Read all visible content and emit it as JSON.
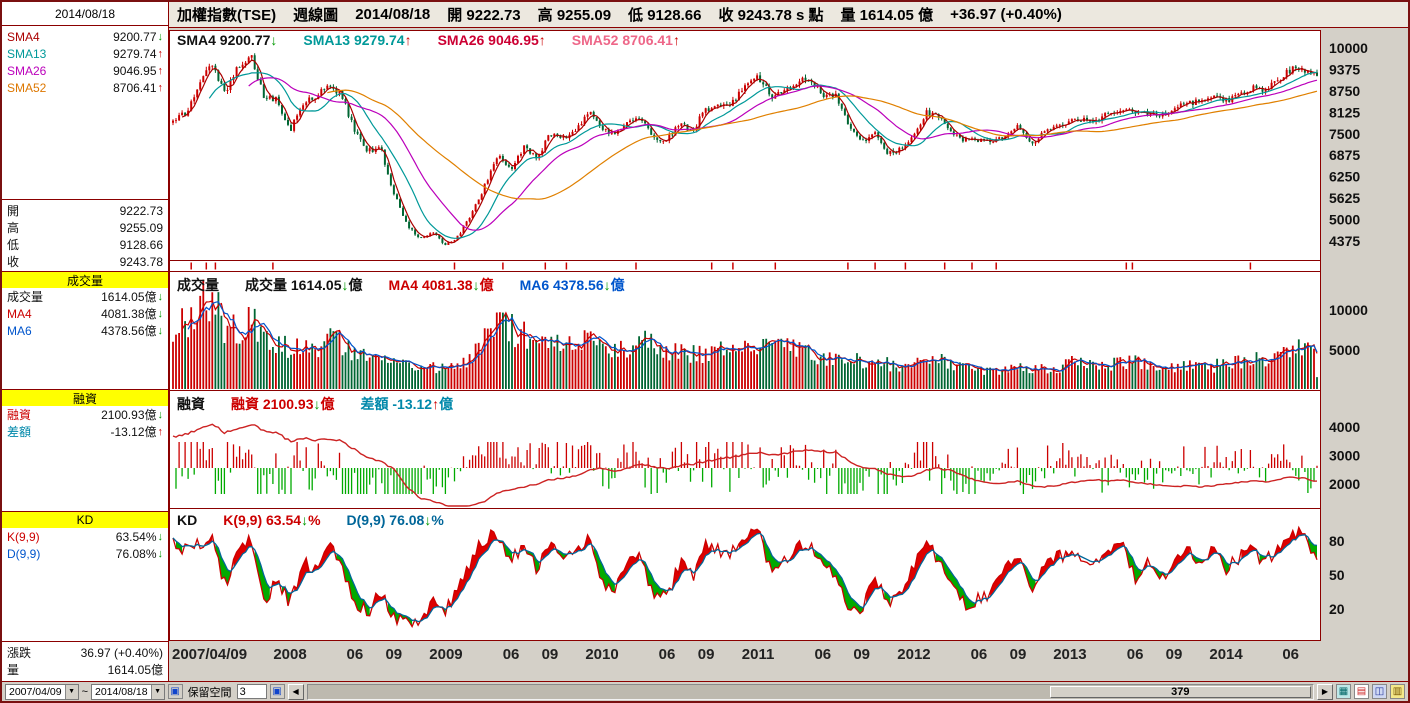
{
  "window": {
    "bg": "#d4d0c8",
    "frame_color": "#7a1010"
  },
  "topbar": {
    "symbol": "加權指數(TSE)",
    "period": "週線圖",
    "date": "2014/08/18",
    "open": "開 9222.73",
    "high": "高 9255.09",
    "low": "低 9128.66",
    "close": "收 9243.78 s 點",
    "volume": "量 1614.05 億",
    "change": "+36.97 (+0.40%)"
  },
  "sidebar": {
    "date": "2014/08/18",
    "sma_rows": [
      {
        "label": "SMA4",
        "value": "9200.77",
        "arrow": "↓",
        "arrow_color": "#009900",
        "color": "#aa0000"
      },
      {
        "label": "SMA13",
        "value": "9279.74",
        "arrow": "↑",
        "arrow_color": "#cc0000",
        "color": "#009999"
      },
      {
        "label": "SMA26",
        "value": "9046.95",
        "arrow": "↑",
        "arrow_color": "#cc0000",
        "color": "#bb00bb"
      },
      {
        "label": "SMA52",
        "value": "8706.41",
        "arrow": "↑",
        "arrow_color": "#cc0000",
        "color": "#dd7700"
      }
    ],
    "ohlc_rows": [
      {
        "label": "開",
        "value": "9222.73"
      },
      {
        "label": "高",
        "value": "9255.09"
      },
      {
        "label": "低",
        "value": "9128.66"
      },
      {
        "label": "收",
        "value": "9243.78"
      }
    ],
    "volume_section": {
      "header": "成交量",
      "rows": [
        {
          "label": "成交量",
          "value": "1614.05億",
          "arrow": "↓",
          "arrow_color": "#009900",
          "color": "#111111"
        },
        {
          "label": "MA4",
          "value": "4081.38億",
          "arrow": "↓",
          "arrow_color": "#009900",
          "color": "#cc0000"
        },
        {
          "label": "MA6",
          "value": "4378.56億",
          "arrow": "↓",
          "arrow_color": "#009900",
          "color": "#0055cc"
        }
      ]
    },
    "margin_section": {
      "header": "融資",
      "rows": [
        {
          "label": "融資",
          "value": "2100.93億",
          "arrow": "↓",
          "arrow_color": "#009900",
          "color": "#cc0000"
        },
        {
          "label": "差額",
          "value": "-13.12億",
          "arrow": "↑",
          "arrow_color": "#cc0000",
          "color": "#0088aa"
        }
      ]
    },
    "kd_section": {
      "header": "KD",
      "rows": [
        {
          "label": "K(9,9)",
          "value": "63.54%",
          "arrow": "↓",
          "arrow_color": "#009900",
          "color": "#cc0000"
        },
        {
          "label": "D(9,9)",
          "value": "76.08%",
          "arrow": "↓",
          "arrow_color": "#009900",
          "color": "#0055cc"
        }
      ]
    },
    "footer_rows": [
      {
        "label": "漲跌",
        "value": "36.97 (+0.40%)"
      },
      {
        "label": "量",
        "value": "1614.05億"
      }
    ]
  },
  "bottombar": {
    "from_date": "2007/04/09",
    "tilde": "~",
    "to_date": "2014/08/18",
    "reserve_label": "保留空間",
    "reserve_value": "3",
    "bar_count": "379"
  },
  "chart_data": [
    {
      "id": "price",
      "type": "candlestick",
      "title": "加權指數(TSE) 週線圖",
      "weeks": 379,
      "up_color": "#cc0000",
      "down_color": "#006633",
      "y_ticks": [
        10000,
        9375,
        8750,
        8125,
        7500,
        6875,
        6250,
        5625,
        5000,
        4375
      ],
      "ylim": [
        4330,
        10520
      ],
      "anchor_months": {
        "start": "2007/04",
        "end": "2014/08"
      },
      "x_axis": {
        "labels": [
          "2007/04/09",
          "2008",
          "06",
          "09",
          "2009",
          "06",
          "09",
          "2010",
          "06",
          "09",
          "2011",
          "06",
          "09",
          "2012",
          "06",
          "09",
          "2013",
          "06",
          "09",
          "2014",
          "06"
        ],
        "fracs": [
          0,
          0.1023,
          0.159,
          0.193,
          0.2386,
          0.2955,
          0.3295,
          0.375,
          0.4318,
          0.466,
          0.5114,
          0.568,
          0.602,
          0.6477,
          0.7045,
          0.7386,
          0.784,
          0.841,
          0.875,
          0.9205,
          0.977
        ]
      },
      "monthly_close_anchors": [
        7900,
        8100,
        8900,
        9550,
        8650,
        9450,
        9750,
        8600,
        8500,
        7600,
        8400,
        8600,
        8950,
        8600,
        7550,
        7000,
        7050,
        5750,
        4850,
        4450,
        4600,
        4250,
        4550,
        5200,
        6000,
        6900,
        6450,
        7100,
        6800,
        7500,
        7350,
        7600,
        8190,
        7640,
        7440,
        7920,
        8000,
        7370,
        7330,
        7760,
        7620,
        8240,
        8290,
        8370,
        8970,
        9150,
        8600,
        8680,
        9010,
        9070,
        8650,
        8640,
        7740,
        7230,
        7590,
        6900,
        7070,
        7520,
        8120,
        7930,
        7500,
        7300,
        7300,
        7270,
        7400,
        7715,
        7170,
        7580,
        7700,
        7850,
        7900,
        7920,
        8090,
        8250,
        8060,
        8110,
        8020,
        8170,
        8450,
        8410,
        8610,
        8460,
        8640,
        8850,
        8790,
        9075,
        9390,
        9315,
        9243
      ],
      "overlays": [
        {
          "name": "SMA4",
          "period": 4,
          "value": 9200.77,
          "color": "#aa0000"
        },
        {
          "name": "SMA13",
          "period": 13,
          "value": 9279.74,
          "color": "#009999"
        },
        {
          "name": "SMA26",
          "period": 26,
          "value": 9046.95,
          "color": "#bb00bb"
        },
        {
          "name": "SMA52",
          "period": 52,
          "value": 8706.41,
          "color": "#e08000"
        }
      ],
      "header": [
        {
          "text": "SMA4 9200.77",
          "arrow": "↓",
          "arrow_color": "#009900",
          "color": "#111111"
        },
        {
          "text": "SMA13 9279.74",
          "arrow": "↑",
          "arrow_color": "#cc0000",
          "color": "#009999"
        },
        {
          "text": "SMA26 9046.95",
          "arrow": "↑",
          "arrow_color": "#cc0000",
          "color": "#cc0033"
        },
        {
          "text": "SMA52 8706.41",
          "arrow": "↑",
          "arrow_color": "#cc0000",
          "color": "#ee6688"
        }
      ]
    },
    {
      "id": "volume",
      "type": "bar",
      "label": "成交量",
      "unit": "億",
      "value": 1614.05,
      "last_bar": 1614.05,
      "y_ticks": [
        10000,
        5000
      ],
      "monthly_anchors": [
        7500,
        8500,
        10500,
        11500,
        8000,
        7500,
        9000,
        7000,
        6000,
        5000,
        5500,
        5200,
        6200,
        6000,
        4800,
        4200,
        3500,
        3200,
        3400,
        3000,
        2800,
        2600,
        3000,
        4200,
        6500,
        9000,
        7500,
        6800,
        6200,
        6000,
        5200,
        5500,
        6000,
        5800,
        4800,
        5400,
        6000,
        5600,
        4600,
        4800,
        4400,
        4600,
        5000,
        5400,
        5600,
        6200,
        5400,
        5000,
        5200,
        4800,
        4000,
        3800,
        4600,
        3600,
        3800,
        3200,
        2800,
        3200,
        4200,
        3800,
        3000,
        2600,
        2400,
        2200,
        2600,
        3000,
        2400,
        2600,
        2800,
        3400,
        3200,
        3000,
        3200,
        3600,
        3400,
        3000,
        2800,
        2900,
        3300,
        3100,
        3000,
        3200,
        3400,
        3800,
        3600,
        4200,
        5000,
        5200,
        4200
      ],
      "ma": [
        {
          "name": "MA4",
          "period": 4,
          "value": 4081.38,
          "color": "#cc0000"
        },
        {
          "name": "MA6",
          "period": 6,
          "value": 4378.56,
          "color": "#0055cc"
        }
      ],
      "header": [
        {
          "text": "成交量",
          "color": "#111111"
        },
        {
          "text": "成交量 1614.05",
          "arrow": "↓",
          "arrow_color": "#009900",
          "tail": "億",
          "color": "#111111"
        },
        {
          "text": "MA4 4081.38",
          "arrow": "↓",
          "arrow_color": "#009900",
          "tail": "億",
          "color": "#cc0000"
        },
        {
          "text": "MA6 4378.56",
          "arrow": "↓",
          "arrow_color": "#009900",
          "tail": "億",
          "color": "#0055cc"
        }
      ]
    },
    {
      "id": "margin",
      "type": "line",
      "label": "融資",
      "unit": "億",
      "value": 2100.93,
      "diff_label": "差額",
      "diff_value": -13.12,
      "line_color": "#cc2222",
      "diff_up_color": "#cc0000",
      "diff_down_color": "#00aa00",
      "y_ticks": [
        4000,
        3000,
        2000
      ],
      "monthly_anchors": [
        3650,
        3750,
        3900,
        4100,
        3800,
        3900,
        4100,
        3900,
        3800,
        3500,
        3600,
        3550,
        3600,
        3500,
        3200,
        2900,
        2800,
        2500,
        1900,
        1500,
        1400,
        1250,
        1200,
        1250,
        1400,
        1700,
        1800,
        1900,
        2000,
        2150,
        2200,
        2300,
        2500,
        2550,
        2450,
        2550,
        2700,
        2600,
        2550,
        2650,
        2700,
        2800,
        2900,
        2950,
        3050,
        3100,
        3000,
        3050,
        3150,
        3200,
        3150,
        3100,
        2800,
        2600,
        2550,
        2350,
        2250,
        2300,
        2500,
        2550,
        2450,
        2250,
        2100,
        2000,
        2050,
        2100,
        1950,
        1900,
        1950,
        2050,
        2100,
        2150,
        2100,
        2150,
        2050,
        2000,
        1950,
        1900,
        1950,
        1900,
        1950,
        2000,
        2050,
        2100,
        2080,
        2150,
        2250,
        2200,
        2100
      ],
      "header": [
        {
          "text": "融資",
          "color": "#111111"
        },
        {
          "text": "融資 2100.93",
          "arrow": "↓",
          "arrow_color": "#009900",
          "tail": "億",
          "color": "#cc0000"
        },
        {
          "text": "差額 -13.12",
          "arrow": "↑",
          "arrow_color": "#cc0000",
          "tail": "億",
          "color": "#0088aa"
        }
      ]
    },
    {
      "id": "kd",
      "type": "line",
      "label": "KD",
      "k": {
        "name": "K(9,9)",
        "value": 63.54,
        "color": "#cc0000"
      },
      "d": {
        "name": "D(9,9)",
        "value": 76.08,
        "color": "#006699"
      },
      "fill_up_color": "#dd0000",
      "fill_down_color": "#00aa00",
      "y_ticks": [
        80,
        50,
        20
      ],
      "k_anchors": [
        82,
        70,
        78,
        85,
        40,
        72,
        80,
        25,
        45,
        25,
        60,
        55,
        75,
        60,
        25,
        18,
        35,
        12,
        10,
        12,
        25,
        20,
        40,
        65,
        82,
        88,
        60,
        80,
        55,
        78,
        60,
        70,
        80,
        45,
        35,
        60,
        68,
        28,
        30,
        62,
        48,
        75,
        72,
        70,
        85,
        87,
        55,
        60,
        75,
        78,
        55,
        52,
        20,
        18,
        50,
        22,
        35,
        60,
        78,
        60,
        35,
        22,
        28,
        35,
        55,
        70,
        35,
        55,
        65,
        70,
        65,
        60,
        70,
        78,
        45,
        60,
        45,
        62,
        75,
        62,
        70,
        55,
        65,
        75,
        60,
        75,
        85,
        88,
        64
      ],
      "header": [
        {
          "text": "KD",
          "color": "#111111"
        },
        {
          "text": "K(9,9) 63.54",
          "arrow": "↓",
          "arrow_color": "#009900",
          "tail": "%",
          "color": "#cc0000"
        },
        {
          "text": "D(9,9) 76.08",
          "arrow": "↓",
          "arrow_color": "#009900",
          "tail": "%",
          "color": "#006699"
        }
      ]
    }
  ]
}
